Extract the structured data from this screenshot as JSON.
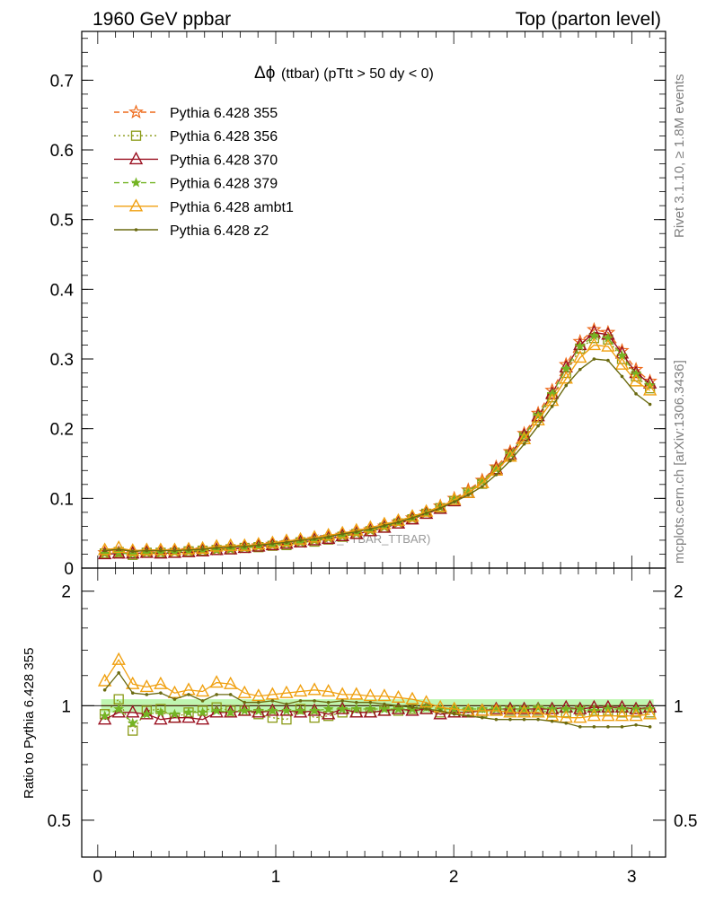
{
  "header": {
    "left_title": "1960 GeV ppbar",
    "right_title": "Top (parton level)"
  },
  "side_labels": {
    "rivet": "Rivet 3.1.10, ≥ 1.8M events",
    "mcplots": "mcplots.cern.ch [arXiv:1306.3436]"
  },
  "watermark": "(MC_TTBAR_TTBAR)",
  "chart_data": [
    {
      "type": "line",
      "title_symbol": "Δϕ",
      "title_rest": " (ttbar) (pTtt > 50 dy < 0)",
      "xlim": [
        -0.09,
        3.19
      ],
      "ylim": [
        0,
        0.77
      ],
      "yticks": [
        0,
        0.1,
        0.2,
        0.3,
        0.4,
        0.5,
        0.6,
        0.7
      ],
      "ytick_labels": [
        "0",
        "0.1",
        "0.2",
        "0.3",
        "0.4",
        "0.5",
        "0.6",
        "0.7"
      ],
      "x": [
        0.0393,
        0.1178,
        0.1963,
        0.2749,
        0.3534,
        0.432,
        0.5105,
        0.589,
        0.6676,
        0.7461,
        0.8247,
        0.9032,
        0.9817,
        1.0603,
        1.1388,
        1.2174,
        1.2959,
        1.3744,
        1.453,
        1.5315,
        1.6101,
        1.6886,
        1.7671,
        1.8457,
        1.9242,
        2.0028,
        2.0813,
        2.1598,
        2.2384,
        2.3169,
        2.3955,
        2.474,
        2.5525,
        2.6311,
        2.7096,
        2.7882,
        2.8667,
        2.9452,
        3.0238,
        3.1023
      ],
      "series": [
        {
          "name": "Pythia 6.428 355",
          "color": "#ee6a1a",
          "marker": "star",
          "dash": "6,4",
          "values": [
            0.022,
            0.022,
            0.022,
            0.023,
            0.023,
            0.024,
            0.025,
            0.026,
            0.027,
            0.028,
            0.03,
            0.032,
            0.034,
            0.036,
            0.038,
            0.041,
            0.044,
            0.047,
            0.051,
            0.055,
            0.06,
            0.066,
            0.072,
            0.08,
            0.089,
            0.1,
            0.112,
            0.126,
            0.145,
            0.167,
            0.193,
            0.222,
            0.255,
            0.292,
            0.325,
            0.342,
            0.338,
            0.312,
            0.285,
            0.268
          ]
        },
        {
          "name": "Pythia 6.428 356",
          "color": "#8a9a16",
          "marker": "square",
          "dash": "2,3",
          "values": [
            0.021,
            0.023,
            0.019,
            0.022,
            0.022,
            0.022,
            0.024,
            0.025,
            0.026,
            0.027,
            0.029,
            0.03,
            0.032,
            0.033,
            0.037,
            0.038,
            0.041,
            0.045,
            0.049,
            0.053,
            0.058,
            0.064,
            0.07,
            0.078,
            0.086,
            0.096,
            0.108,
            0.121,
            0.14,
            0.162,
            0.188,
            0.216,
            0.245,
            0.28,
            0.315,
            0.33,
            0.328,
            0.3,
            0.275,
            0.258
          ]
        },
        {
          "name": "Pythia 6.428 370",
          "color": "#9a1020",
          "marker": "triangle-open",
          "dash": "",
          "values": [
            0.02,
            0.021,
            0.021,
            0.022,
            0.021,
            0.022,
            0.023,
            0.024,
            0.026,
            0.027,
            0.029,
            0.031,
            0.033,
            0.035,
            0.037,
            0.04,
            0.042,
            0.046,
            0.049,
            0.053,
            0.058,
            0.064,
            0.07,
            0.078,
            0.085,
            0.096,
            0.108,
            0.122,
            0.142,
            0.163,
            0.19,
            0.218,
            0.25,
            0.288,
            0.32,
            0.338,
            0.335,
            0.308,
            0.28,
            0.265
          ]
        },
        {
          "name": "Pythia 6.428 379",
          "color": "#74b424",
          "marker": "star-small",
          "dash": "6,4",
          "values": [
            0.021,
            0.022,
            0.02,
            0.022,
            0.022,
            0.023,
            0.024,
            0.025,
            0.026,
            0.027,
            0.029,
            0.031,
            0.033,
            0.035,
            0.037,
            0.04,
            0.043,
            0.046,
            0.05,
            0.054,
            0.059,
            0.065,
            0.071,
            0.079,
            0.087,
            0.098,
            0.11,
            0.124,
            0.142,
            0.164,
            0.19,
            0.219,
            0.25,
            0.286,
            0.318,
            0.333,
            0.33,
            0.305,
            0.278,
            0.262
          ]
        },
        {
          "name": "Pythia 6.428 ambt1",
          "color": "#f0a010",
          "marker": "triangle-open",
          "dash": "",
          "values": [
            0.026,
            0.029,
            0.025,
            0.026,
            0.026,
            0.026,
            0.027,
            0.028,
            0.031,
            0.032,
            0.032,
            0.034,
            0.036,
            0.039,
            0.041,
            0.044,
            0.047,
            0.05,
            0.054,
            0.058,
            0.063,
            0.068,
            0.074,
            0.081,
            0.088,
            0.098,
            0.108,
            0.122,
            0.14,
            0.16,
            0.185,
            0.212,
            0.24,
            0.272,
            0.302,
            0.32,
            0.318,
            0.292,
            0.268,
            0.255
          ]
        },
        {
          "name": "Pythia 6.428 z2",
          "color": "#6a6a10",
          "marker": "dot",
          "dash": "",
          "values": [
            0.025,
            0.027,
            0.024,
            0.025,
            0.025,
            0.025,
            0.026,
            0.027,
            0.029,
            0.03,
            0.031,
            0.033,
            0.035,
            0.037,
            0.04,
            0.042,
            0.045,
            0.049,
            0.052,
            0.056,
            0.061,
            0.066,
            0.072,
            0.079,
            0.086,
            0.095,
            0.105,
            0.117,
            0.134,
            0.154,
            0.178,
            0.204,
            0.232,
            0.262,
            0.285,
            0.3,
            0.298,
            0.275,
            0.25,
            0.235
          ]
        }
      ]
    },
    {
      "type": "line",
      "ylabel": "Ratio to Pythia 6.428 355",
      "xlim": [
        -0.09,
        3.19
      ],
      "ylim": [
        0.4,
        2.3
      ],
      "log_y": true,
      "yticks": [
        0.5,
        1,
        2
      ],
      "ytick_labels": [
        "0.5",
        "1",
        "2"
      ],
      "xticks": [
        0,
        1,
        2,
        3
      ],
      "xtick_labels": [
        "0",
        "1",
        "2",
        "3"
      ],
      "reference_band": [
        0.96,
        1.04
      ],
      "ratios": [
        {
          "name": "Pythia 6.428 356",
          "values": [
            0.95,
            1.04,
            0.86,
            0.97,
            0.98,
            0.93,
            0.96,
            0.97,
            0.99,
            0.97,
            0.97,
            0.95,
            0.93,
            0.92,
            0.98,
            0.93,
            0.94,
            0.96,
            0.96,
            0.96,
            0.97,
            0.97,
            0.98,
            0.98,
            0.96,
            0.96,
            0.96,
            0.96,
            0.97,
            0.97,
            0.97,
            0.97,
            0.96,
            0.96,
            0.97,
            0.97,
            0.97,
            0.96,
            0.96,
            0.96
          ]
        },
        {
          "name": "Pythia 6.428 370",
          "values": [
            0.92,
            0.96,
            0.96,
            0.95,
            0.92,
            0.93,
            0.93,
            0.92,
            0.96,
            0.96,
            0.97,
            0.96,
            0.97,
            0.97,
            0.96,
            0.97,
            0.95,
            0.98,
            0.96,
            0.96,
            0.97,
            0.98,
            0.97,
            0.98,
            0.95,
            0.96,
            0.96,
            0.97,
            0.98,
            0.98,
            0.98,
            0.98,
            0.98,
            0.99,
            0.98,
            0.99,
            0.99,
            0.99,
            0.98,
            0.99
          ]
        },
        {
          "name": "Pythia 6.428 379",
          "values": [
            0.94,
            0.98,
            0.9,
            0.95,
            0.96,
            0.95,
            0.96,
            0.96,
            0.97,
            0.96,
            0.97,
            0.97,
            0.97,
            0.97,
            0.97,
            0.97,
            0.98,
            0.98,
            0.98,
            0.98,
            0.98,
            0.98,
            0.98,
            0.99,
            0.98,
            0.98,
            0.98,
            0.98,
            0.98,
            0.98,
            0.98,
            0.99,
            0.98,
            0.98,
            0.98,
            0.97,
            0.98,
            0.98,
            0.98,
            0.98
          ]
        },
        {
          "name": "Pythia 6.428 ambt1",
          "values": [
            1.16,
            1.32,
            1.14,
            1.12,
            1.14,
            1.08,
            1.1,
            1.09,
            1.15,
            1.14,
            1.08,
            1.06,
            1.07,
            1.08,
            1.09,
            1.1,
            1.09,
            1.07,
            1.07,
            1.06,
            1.06,
            1.05,
            1.04,
            1.02,
            0.99,
            0.98,
            0.97,
            0.97,
            0.97,
            0.96,
            0.96,
            0.96,
            0.94,
            0.93,
            0.93,
            0.94,
            0.94,
            0.94,
            0.94,
            0.95
          ]
        },
        {
          "name": "Pythia 6.428 z2",
          "values": [
            1.1,
            1.22,
            1.08,
            1.07,
            1.08,
            1.04,
            1.07,
            1.03,
            1.07,
            1.07,
            1.02,
            1.02,
            1.03,
            1.01,
            1.03,
            1.03,
            1.02,
            1.03,
            1.02,
            1.02,
            1.01,
            1.0,
            0.99,
            0.98,
            0.97,
            0.95,
            0.94,
            0.93,
            0.92,
            0.92,
            0.92,
            0.92,
            0.91,
            0.9,
            0.88,
            0.88,
            0.88,
            0.88,
            0.89,
            0.88
          ]
        }
      ]
    }
  ]
}
